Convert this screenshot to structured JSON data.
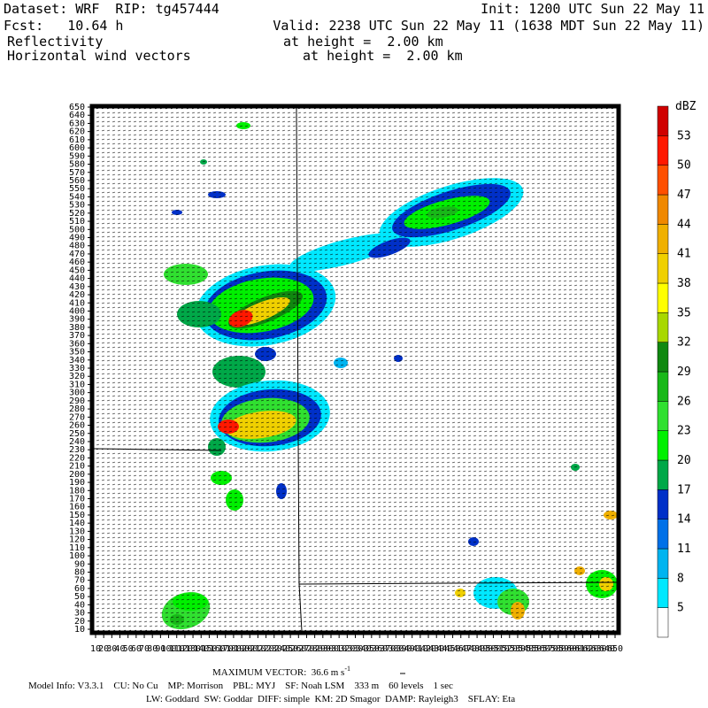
{
  "header": {
    "dataset": "Dataset: WRF  RIP: tg457444",
    "init": "Init: 1200 UTC Sun 22 May 11",
    "fcst": "Fcst:   10.64 h",
    "valid": "Valid: 2238 UTC Sun 22 May 11 (1638 MDT Sun 22 May 11)",
    "field1": "Reflectivity",
    "field1_level": "at height =  2.00 km",
    "field2": "Horizontal wind vectors",
    "field2_level": "at height =  2.00 km"
  },
  "map": {
    "xlim": [
      10,
      650
    ],
    "ylim": [
      10,
      650
    ],
    "xticks": [
      10,
      20,
      30,
      40,
      50,
      60,
      70,
      80,
      90,
      100,
      110,
      120,
      130,
      140,
      150,
      160,
      170,
      180,
      190,
      200,
      210,
      220,
      230,
      240,
      250,
      260,
      270,
      280,
      290,
      300,
      310,
      320,
      330,
      340,
      350,
      360,
      370,
      380,
      390,
      400,
      410,
      420,
      430,
      440,
      450,
      460,
      470,
      480,
      490,
      500,
      510,
      520,
      530,
      540,
      550,
      560,
      570,
      580,
      590,
      600,
      610,
      620,
      630,
      640,
      650
    ],
    "yticks": [
      10,
      20,
      30,
      40,
      50,
      60,
      70,
      80,
      90,
      100,
      110,
      120,
      130,
      140,
      150,
      160,
      170,
      180,
      190,
      200,
      210,
      220,
      230,
      240,
      250,
      260,
      270,
      280,
      290,
      300,
      310,
      320,
      330,
      340,
      350,
      360,
      370,
      380,
      390,
      400,
      410,
      420,
      430,
      440,
      450,
      460,
      470,
      480,
      490,
      500,
      510,
      520,
      530,
      540,
      550,
      560,
      570,
      580,
      590,
      600,
      610,
      620,
      630,
      640,
      650
    ]
  },
  "colorbar": {
    "unit": "dBZ",
    "levels": [
      5,
      8,
      11,
      14,
      17,
      20,
      23,
      26,
      29,
      32,
      35,
      38,
      41,
      44,
      47,
      50,
      53
    ],
    "colors": [
      "#ffffff",
      "#00e8ff",
      "#00b4f0",
      "#0070e8",
      "#0030c8",
      "#00a848",
      "#00f000",
      "#30e030",
      "#18b818",
      "#108810",
      "#a8d800",
      "#ffff00",
      "#f0d000",
      "#f0b000",
      "#f08800",
      "#ff5000",
      "#ff1800",
      "#d00000"
    ]
  },
  "footer": {
    "max_vector": "MAXIMUM VECTOR:  36.6 m s",
    "max_vector_exp": "-1",
    "model_info": "Model Info: V3.3.1    CU: No Cu    MP: Morrison    PBL: MYJ    SF: Noah LSM    333 m    60 levels    1 sec",
    "model_info2": "LW: Goddard  SW: Goddar  DIFF: simple  KM: 2D Smagor  DAMP: Rayleigh3    SFLAY: Eta"
  }
}
